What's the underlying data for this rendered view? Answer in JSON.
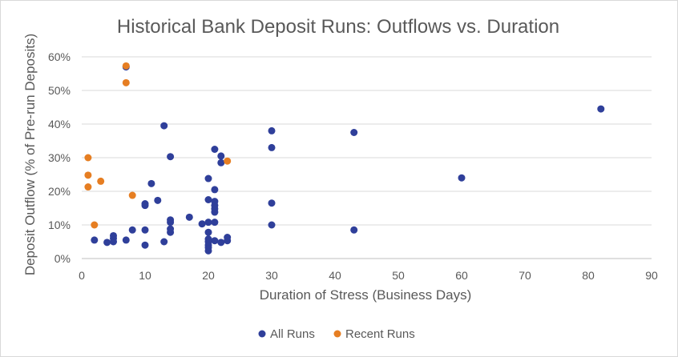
{
  "chart_data": {
    "type": "scatter",
    "title": "Historical Bank Deposit Runs: Outflows vs. Duration",
    "xlabel": "Duration of Stress (Business Days)",
    "ylabel": "Deposit Outflow (% of Pre-run Deposits)",
    "xlim": [
      0,
      90
    ],
    "ylim": [
      0,
      60
    ],
    "x_ticks": [
      "0",
      "10",
      "20",
      "30",
      "40",
      "50",
      "60",
      "70",
      "80",
      "90"
    ],
    "y_ticks": [
      "0%",
      "10%",
      "20%",
      "30%",
      "40%",
      "50%",
      "60%"
    ],
    "grid": "horizontal",
    "legend_position": "bottom",
    "series": [
      {
        "name": "All Runs",
        "color": "#2f3f9a",
        "points": [
          [
            2,
            5.5
          ],
          [
            4,
            4.8
          ],
          [
            5,
            5.0
          ],
          [
            5,
            6.0
          ],
          [
            5,
            6.8
          ],
          [
            7,
            5.5
          ],
          [
            7,
            57
          ],
          [
            8,
            8.5
          ],
          [
            10,
            4.0
          ],
          [
            10,
            8.5
          ],
          [
            10,
            15.8
          ],
          [
            10,
            16.3
          ],
          [
            11,
            22.3
          ],
          [
            12,
            17.3
          ],
          [
            13,
            5.0
          ],
          [
            13,
            39.5
          ],
          [
            14,
            7.8
          ],
          [
            14,
            8.8
          ],
          [
            14,
            10.8
          ],
          [
            14,
            11.5
          ],
          [
            14,
            30.3
          ],
          [
            17,
            12.3
          ],
          [
            19,
            10.3
          ],
          [
            20,
            2.3
          ],
          [
            20,
            3.3
          ],
          [
            20,
            4.0
          ],
          [
            20,
            5.0
          ],
          [
            20,
            5.8
          ],
          [
            20,
            7.8
          ],
          [
            20,
            10.8
          ],
          [
            20,
            17.5
          ],
          [
            20,
            23.8
          ],
          [
            21,
            5.3
          ],
          [
            21,
            10.8
          ],
          [
            21,
            13.8
          ],
          [
            21,
            14.8
          ],
          [
            21,
            15.8
          ],
          [
            21,
            17.0
          ],
          [
            21,
            20.5
          ],
          [
            21,
            32.5
          ],
          [
            22,
            4.8
          ],
          [
            22,
            28.5
          ],
          [
            22,
            30.5
          ],
          [
            23,
            5.3
          ],
          [
            23,
            6.3
          ],
          [
            30,
            10.0
          ],
          [
            30,
            16.5
          ],
          [
            30,
            33.0
          ],
          [
            30,
            38.0
          ],
          [
            43,
            8.5
          ],
          [
            43,
            37.5
          ],
          [
            60,
            24.0
          ],
          [
            82,
            44.5
          ]
        ]
      },
      {
        "name": "Recent Runs",
        "color": "#e67e22",
        "points": [
          [
            1,
            21.3
          ],
          [
            1,
            24.8
          ],
          [
            1,
            30.0
          ],
          [
            2,
            10.0
          ],
          [
            3,
            23.0
          ],
          [
            7,
            52.3
          ],
          [
            7,
            57.3
          ],
          [
            8,
            18.8
          ],
          [
            23,
            29.0
          ]
        ]
      }
    ]
  }
}
